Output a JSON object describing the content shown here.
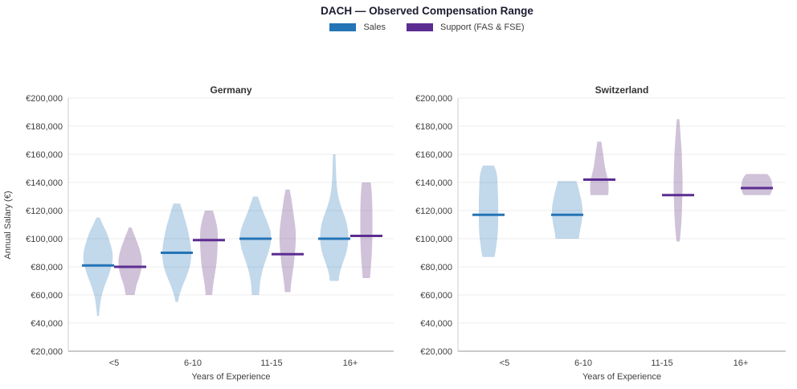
{
  "chart_data": {
    "type": "violin",
    "title": "DACH — Observed Compensation Range",
    "xlabel": "Years of Experience",
    "ylabel": "Annual Salary (€)",
    "categories": [
      "<5",
      "6-10",
      "11-15",
      "16+"
    ],
    "ylim": [
      20000,
      200000
    ],
    "grid": true,
    "legend_position": "top-center",
    "y_ticks": [
      20000,
      40000,
      60000,
      80000,
      100000,
      120000,
      140000,
      160000,
      180000,
      200000
    ],
    "y_tick_labels": [
      "€20,000",
      "€40,000",
      "€60,000",
      "€80,000",
      "€100,000",
      "€120,000",
      "€140,000",
      "€160,000",
      "€180,000",
      "€200,000"
    ],
    "series_meta": [
      {
        "name": "Sales",
        "color": "#2474B6",
        "fill": "rgba(36,116,182,0.28)"
      },
      {
        "name": "Support (FAS & FSE)",
        "color": "#5C2D91",
        "fill": "rgba(101,53,128,0.30)"
      }
    ],
    "panels": [
      {
        "title": "Germany",
        "groups": [
          {
            "category": "<5",
            "violins": [
              {
                "series": "Sales",
                "median": 81000,
                "min": 45000,
                "max": 115000,
                "profile": [
                  [
                    115000,
                    2
                  ],
                  [
                    110000,
                    6
                  ],
                  [
                    104000,
                    11
                  ],
                  [
                    97000,
                    15
                  ],
                  [
                    90000,
                    18
                  ],
                  [
                    84000,
                    18
                  ],
                  [
                    78000,
                    15.5
                  ],
                  [
                    72000,
                    12
                  ],
                  [
                    66000,
                    8
                  ],
                  [
                    58000,
                    4
                  ],
                  [
                    50000,
                    2
                  ],
                  [
                    45000,
                    1.2
                  ]
                ]
              },
              {
                "series": "Support (FAS & FSE)",
                "median": 80000,
                "min": 60000,
                "max": 108000,
                "profile": [
                  [
                    108000,
                    1.5
                  ],
                  [
                    103000,
                    5
                  ],
                  [
                    97000,
                    9
                  ],
                  [
                    91000,
                    12.5
                  ],
                  [
                    85000,
                    14.5
                  ],
                  [
                    79000,
                    14
                  ],
                  [
                    73000,
                    11.5
                  ],
                  [
                    67000,
                    8
                  ],
                  [
                    60000,
                    5.5
                  ]
                ]
              }
            ]
          },
          {
            "category": "6-10",
            "violins": [
              {
                "series": "Sales",
                "median": 90000,
                "min": 55000,
                "max": 125000,
                "profile": [
                  [
                    125000,
                    4
                  ],
                  [
                    121000,
                    6.5
                  ],
                  [
                    115000,
                    9.5
                  ],
                  [
                    108000,
                    13
                  ],
                  [
                    101000,
                    15.5
                  ],
                  [
                    94000,
                    17.5
                  ],
                  [
                    87000,
                    18
                  ],
                  [
                    80000,
                    16
                  ],
                  [
                    73000,
                    12
                  ],
                  [
                    66000,
                    7
                  ],
                  [
                    60000,
                    3.5
                  ],
                  [
                    55000,
                    1.5
                  ]
                ]
              },
              {
                "series": "Support (FAS & FSE)",
                "median": 99000,
                "min": 60000,
                "max": 120000,
                "profile": [
                  [
                    120000,
                    5
                  ],
                  [
                    114000,
                    8
                  ],
                  [
                    107000,
                    10.5
                  ],
                  [
                    99000,
                    11
                  ],
                  [
                    91000,
                    10.5
                  ],
                  [
                    83000,
                    9.5
                  ],
                  [
                    75000,
                    7.5
                  ],
                  [
                    68000,
                    5.5
                  ],
                  [
                    60000,
                    4
                  ]
                ]
              }
            ]
          },
          {
            "category": "11-15",
            "violins": [
              {
                "series": "Sales",
                "median": 100000,
                "min": 60000,
                "max": 130000,
                "profile": [
                  [
                    130000,
                    3
                  ],
                  [
                    124000,
                    6.5
                  ],
                  [
                    117000,
                    11
                  ],
                  [
                    110000,
                    16
                  ],
                  [
                    104000,
                    19
                  ],
                  [
                    98000,
                    19
                  ],
                  [
                    92000,
                    17
                  ],
                  [
                    85000,
                    13
                  ],
                  [
                    78000,
                    9
                  ],
                  [
                    70000,
                    6
                  ],
                  [
                    64000,
                    5
                  ],
                  [
                    60000,
                    4.5
                  ]
                ]
              },
              {
                "series": "Support (FAS & FSE)",
                "median": 89000,
                "min": 62000,
                "max": 135000,
                "profile": [
                  [
                    135000,
                    2.5
                  ],
                  [
                    129000,
                    4.5
                  ],
                  [
                    121000,
                    6.5
                  ],
                  [
                    113000,
                    8.5
                  ],
                  [
                    105000,
                    10
                  ],
                  [
                    97000,
                    10
                  ],
                  [
                    89000,
                    9
                  ],
                  [
                    81000,
                    7.5
                  ],
                  [
                    73000,
                    5.5
                  ],
                  [
                    66000,
                    4
                  ],
                  [
                    62000,
                    3.5
                  ]
                ]
              }
            ]
          },
          {
            "category": "16+",
            "violins": [
              {
                "series": "Sales",
                "median": 100000,
                "min": 70000,
                "max": 160000,
                "profile": [
                  [
                    160000,
                    1.5
                  ],
                  [
                    152000,
                    2
                  ],
                  [
                    144000,
                    2.5
                  ],
                  [
                    136000,
                    3.5
                  ],
                  [
                    129000,
                    5.5
                  ],
                  [
                    122000,
                    9
                  ],
                  [
                    115000,
                    13.5
                  ],
                  [
                    108000,
                    16.5
                  ],
                  [
                    102000,
                    17.5
                  ],
                  [
                    96000,
                    17
                  ],
                  [
                    90000,
                    15
                  ],
                  [
                    84000,
                    11.5
                  ],
                  [
                    78000,
                    8
                  ],
                  [
                    73000,
                    6
                  ],
                  [
                    70000,
                    5.5
                  ]
                ]
              },
              {
                "series": "Support (FAS & FSE)",
                "median": 102000,
                "min": 72000,
                "max": 140000,
                "profile": [
                  [
                    140000,
                    5.5
                  ],
                  [
                    134000,
                    6.5
                  ],
                  [
                    127000,
                    7.2
                  ],
                  [
                    119000,
                    7.5
                  ],
                  [
                    111000,
                    7.5
                  ],
                  [
                    103000,
                    7.5
                  ],
                  [
                    95000,
                    7.2
                  ],
                  [
                    87000,
                    6.5
                  ],
                  [
                    79000,
                    5.5
                  ],
                  [
                    72000,
                    4.5
                  ]
                ]
              }
            ]
          }
        ]
      },
      {
        "title": "Switzerland",
        "groups": [
          {
            "category": "<5",
            "violins": [
              {
                "series": "Sales",
                "median": 117000,
                "min": 87000,
                "max": 152000,
                "profile": [
                  [
                    152000,
                    7
                  ],
                  [
                    148000,
                    9.5
                  ],
                  [
                    143000,
                    11
                  ],
                  [
                    136000,
                    11.5
                  ],
                  [
                    128000,
                    12
                  ],
                  [
                    120000,
                    12
                  ],
                  [
                    112000,
                    12
                  ],
                  [
                    104000,
                    11.5
                  ],
                  [
                    96000,
                    10
                  ],
                  [
                    90000,
                    8.5
                  ],
                  [
                    87000,
                    7.5
                  ]
                ]
              }
            ]
          },
          {
            "category": "6-10",
            "violins": [
              {
                "series": "Sales",
                "median": 117000,
                "min": 100000,
                "max": 141000,
                "profile": [
                  [
                    141000,
                    11.5
                  ],
                  [
                    136000,
                    14
                  ],
                  [
                    130000,
                    16.5
                  ],
                  [
                    124000,
                    18.5
                  ],
                  [
                    118000,
                    19
                  ],
                  [
                    112000,
                    18
                  ],
                  [
                    106000,
                    16
                  ],
                  [
                    100000,
                    14.5
                  ]
                ]
              },
              {
                "series": "Support (FAS & FSE)",
                "median": 142000,
                "min": 131000,
                "max": 169000,
                "profile": [
                  [
                    169000,
                    2.5
                  ],
                  [
                    163000,
                    4
                  ],
                  [
                    157000,
                    5.5
                  ],
                  [
                    151000,
                    7
                  ],
                  [
                    146000,
                    9
                  ],
                  [
                    141000,
                    11
                  ],
                  [
                    136000,
                    11.5
                  ],
                  [
                    131000,
                    11
                  ]
                ]
              }
            ]
          },
          {
            "category": "11-15",
            "violins": [
              {
                "series": "Support (FAS & FSE)",
                "median": 131000,
                "min": 98000,
                "max": 185000,
                "profile": [
                  [
                    185000,
                    1.5
                  ],
                  [
                    178000,
                    2.5
                  ],
                  [
                    170000,
                    3.5
                  ],
                  [
                    161000,
                    4.5
                  ],
                  [
                    152000,
                    5
                  ],
                  [
                    143000,
                    5.5
                  ],
                  [
                    134000,
                    5.5
                  ],
                  [
                    125000,
                    5
                  ],
                  [
                    116000,
                    4.5
                  ],
                  [
                    107000,
                    3.5
                  ],
                  [
                    98000,
                    2
                  ]
                ]
              }
            ]
          },
          {
            "category": "16+",
            "violins": [
              {
                "series": "Support (FAS & FSE)",
                "median": 136000,
                "min": 131000,
                "max": 146000,
                "profile": [
                  [
                    146000,
                    13
                  ],
                  [
                    144000,
                    16
                  ],
                  [
                    141000,
                    18.5
                  ],
                  [
                    138000,
                    19
                  ],
                  [
                    135000,
                    19
                  ],
                  [
                    133000,
                    18
                  ],
                  [
                    131000,
                    16.5
                  ]
                ]
              }
            ]
          }
        ]
      }
    ]
  }
}
